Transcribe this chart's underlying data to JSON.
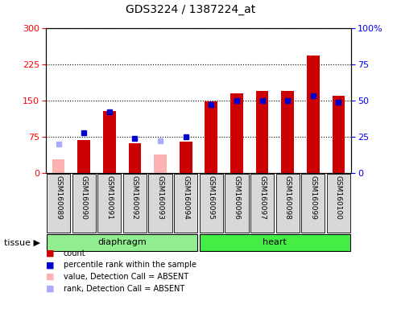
{
  "title": "GDS3224 / 1387224_at",
  "samples": [
    "GSM160089",
    "GSM160090",
    "GSM160091",
    "GSM160092",
    "GSM160093",
    "GSM160094",
    "GSM160095",
    "GSM160096",
    "GSM160097",
    "GSM160098",
    "GSM160099",
    "GSM160100"
  ],
  "count_values": [
    null,
    68,
    128,
    62,
    null,
    65,
    148,
    165,
    170,
    170,
    242,
    160
  ],
  "count_absent": [
    28,
    null,
    null,
    null,
    38,
    null,
    null,
    null,
    null,
    null,
    null,
    null
  ],
  "rank_values_pct": [
    null,
    28,
    42,
    24,
    null,
    25,
    47,
    50,
    50,
    50,
    53,
    49
  ],
  "rank_absent_pct": [
    20,
    null,
    null,
    null,
    22,
    null,
    null,
    null,
    null,
    null,
    null,
    null
  ],
  "ylim_left": [
    0,
    300
  ],
  "ylim_right": [
    0,
    100
  ],
  "yticks_left": [
    0,
    75,
    150,
    225,
    300
  ],
  "yticks_right": [
    0,
    25,
    50,
    75,
    100
  ],
  "bar_color": "#cc0000",
  "bar_absent_color": "#ffb0b0",
  "rank_color": "#0000cc",
  "rank_absent_color": "#aaaaff",
  "diaphragm_color": "#90ee90",
  "heart_color": "#44ee44",
  "bar_width": 0.5,
  "title_fontsize": 10,
  "label_fontsize": 6.5,
  "group_fontsize": 8,
  "legend_fontsize": 7
}
